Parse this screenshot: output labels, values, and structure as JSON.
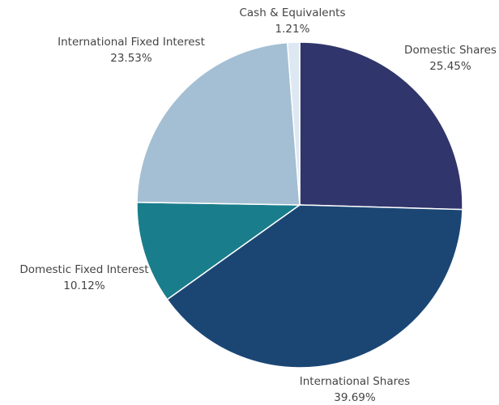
{
  "chart_data": {
    "type": "pie",
    "categories": [
      "Domestic Shares",
      "International Shares",
      "Domestic Fixed Interest",
      "International Fixed Interest",
      "Cash & Equivalents"
    ],
    "values": [
      25.45,
      39.69,
      10.12,
      23.53,
      1.21
    ],
    "value_labels": [
      "25.45%",
      "39.69%",
      "10.12%",
      "23.53%",
      "1.21%"
    ],
    "colors": [
      "#30356b",
      "#1b4674",
      "#1a7d8c",
      "#a4bfd3",
      "#dde8f2"
    ]
  }
}
